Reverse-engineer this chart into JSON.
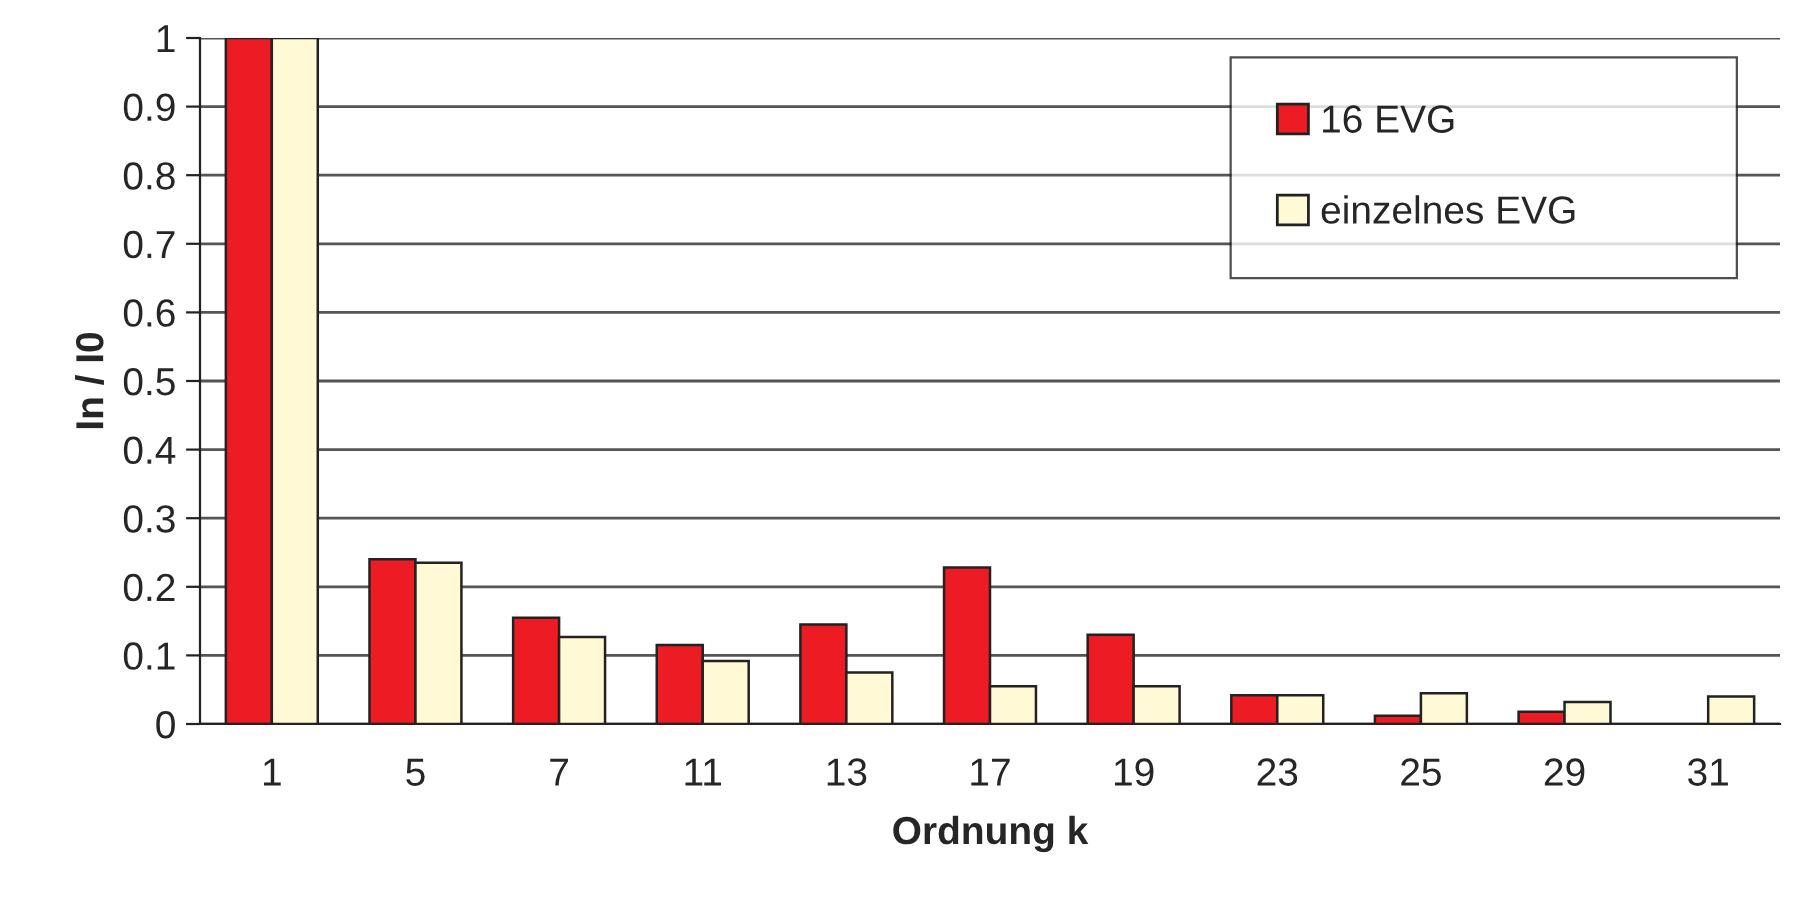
{
  "chart_data": {
    "type": "bar",
    "xlabel": "Ordnung k",
    "ylabel": "In / I0",
    "categories": [
      "1",
      "5",
      "7",
      "11",
      "13",
      "17",
      "19",
      "23",
      "25",
      "29",
      "31"
    ],
    "series": [
      {
        "name": "16 EVG",
        "color": "#ed1c24",
        "values": [
          1,
          0.24,
          0.155,
          0.115,
          0.145,
          0.228,
          0.13,
          0.042,
          0.012,
          0.018,
          null
        ]
      },
      {
        "name": "einzelnes EVG",
        "color": "#fff9d6",
        "values": [
          1,
          0.235,
          0.127,
          0.092,
          0.075,
          0.055,
          0.055,
          0.042,
          0.045,
          0.032,
          0.04
        ]
      }
    ],
    "ylim": [
      0,
      1
    ],
    "yticks": [
      0,
      0.1,
      0.2,
      0.3,
      0.4,
      0.5,
      0.6,
      0.7,
      0.8,
      0.9,
      1
    ],
    "grid": "y",
    "legend": "top right"
  }
}
